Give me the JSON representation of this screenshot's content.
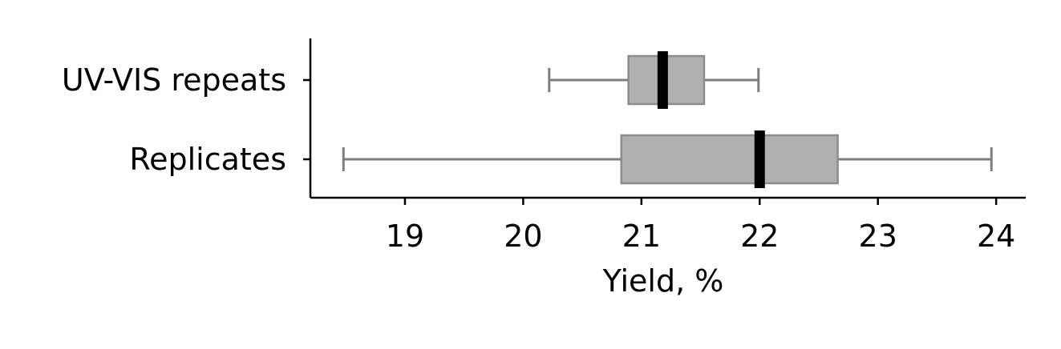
{
  "chart_data": {
    "type": "boxplot",
    "orientation": "horizontal",
    "xlabel": "Yield, %",
    "ylabel": "",
    "xlim": [
      18.2,
      24.25
    ],
    "xticks": [
      19,
      20,
      21,
      22,
      23,
      24
    ],
    "categories": [
      "UV-VIS repeats",
      "Replicates"
    ],
    "series": [
      {
        "name": "UV-VIS repeats",
        "whisker_low": 20.22,
        "q1": 20.89,
        "median": 21.18,
        "q3": 21.53,
        "whisker_high": 21.99
      },
      {
        "name": "Replicates",
        "whisker_low": 18.48,
        "q1": 20.83,
        "median": 22.0,
        "q3": 22.66,
        "whisker_high": 23.96
      }
    ],
    "colors": {
      "box": "#b0b0b0",
      "whisker": "#7f7f7f",
      "median": "#000000"
    },
    "grid": false,
    "legend": "none"
  }
}
